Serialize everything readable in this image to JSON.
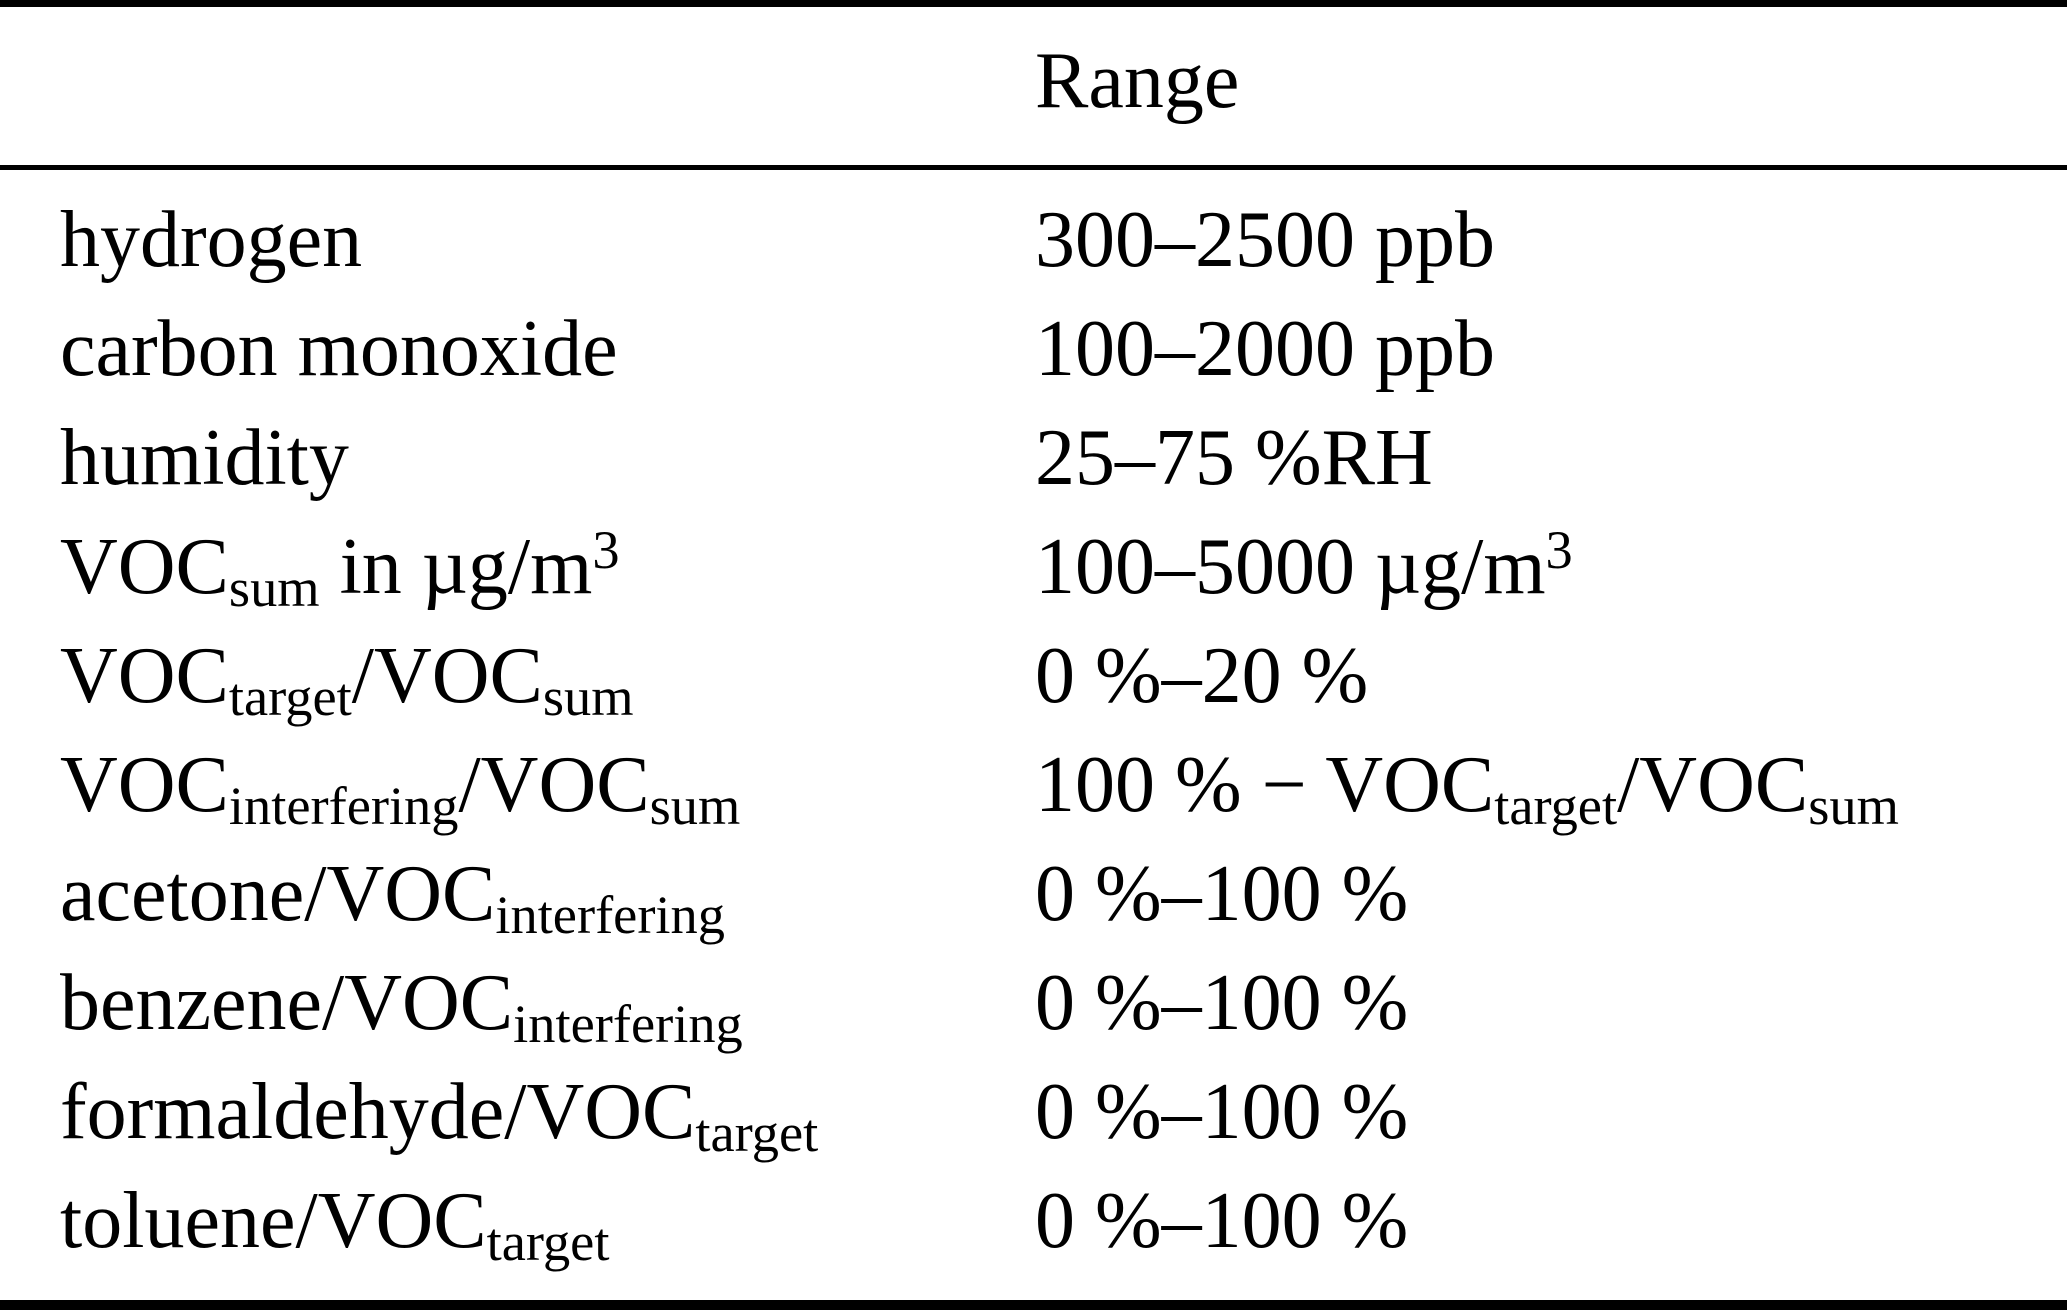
{
  "meta": {
    "background_color": "#ffffff",
    "text_color": "#000000",
    "rule_color": "#000000"
  },
  "table": {
    "header": {
      "parameter_label": "",
      "range_label": "Range"
    },
    "rows": [
      {
        "parameter": [
          {
            "t": "hydrogen"
          }
        ],
        "range": [
          {
            "t": "300–2500 ppb"
          }
        ]
      },
      {
        "parameter": [
          {
            "t": "carbon monoxide"
          }
        ],
        "range": [
          {
            "t": "100–2000 ppb"
          }
        ]
      },
      {
        "parameter": [
          {
            "t": "humidity"
          }
        ],
        "range": [
          {
            "t": "25–75 %RH"
          }
        ]
      },
      {
        "parameter": [
          {
            "t": "VOC"
          },
          {
            "t": "sum",
            "s": "sub"
          },
          {
            "t": " in µg/m"
          },
          {
            "t": "3",
            "s": "sup"
          }
        ],
        "range": [
          {
            "t": "100–5000 µg/m"
          },
          {
            "t": "3",
            "s": "sup"
          }
        ]
      },
      {
        "parameter": [
          {
            "t": "VOC"
          },
          {
            "t": "target",
            "s": "sub"
          },
          {
            "t": "/VOC"
          },
          {
            "t": "sum",
            "s": "sub"
          }
        ],
        "range": [
          {
            "t": "0 %–20 %"
          }
        ]
      },
      {
        "parameter": [
          {
            "t": "VOC"
          },
          {
            "t": "interfering",
            "s": "sub"
          },
          {
            "t": "/VOC"
          },
          {
            "t": "sum",
            "s": "sub"
          }
        ],
        "range": [
          {
            "t": "100 % − VOC"
          },
          {
            "t": "target",
            "s": "sub"
          },
          {
            "t": "/VOC"
          },
          {
            "t": "sum",
            "s": "sub"
          }
        ]
      },
      {
        "parameter": [
          {
            "t": "acetone/VOC"
          },
          {
            "t": "interfering",
            "s": "sub"
          }
        ],
        "range": [
          {
            "t": "0 %–100 %"
          }
        ]
      },
      {
        "parameter": [
          {
            "t": "benzene/VOC"
          },
          {
            "t": "interfering",
            "s": "sub"
          }
        ],
        "range": [
          {
            "t": "0 %–100 %"
          }
        ]
      },
      {
        "parameter": [
          {
            "t": "formaldehyde/VOC"
          },
          {
            "t": "target",
            "s": "sub"
          }
        ],
        "range": [
          {
            "t": "0 %–100 %"
          }
        ]
      },
      {
        "parameter": [
          {
            "t": "toluene/VOC"
          },
          {
            "t": "target",
            "s": "sub"
          }
        ],
        "range": [
          {
            "t": "0 %–100 %"
          }
        ]
      }
    ]
  }
}
